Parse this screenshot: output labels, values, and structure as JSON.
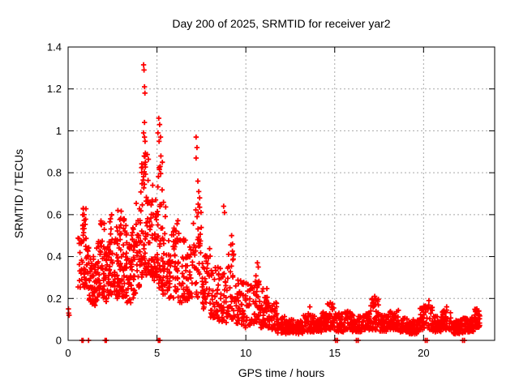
{
  "window": {
    "background": "#ffffff"
  },
  "chart_data": {
    "type": "scatter",
    "title": "Day 200 of 2025, SRMTID for receiver yar2",
    "xlabel": "GPS time / hours",
    "ylabel": "SRMTID / TECUs",
    "xlim": [
      0,
      24
    ],
    "ylim": [
      0,
      1.4
    ],
    "xticks": {
      "values": [
        0,
        5,
        10,
        15,
        20
      ],
      "labels": [
        "0",
        "5",
        "10",
        "15",
        "20"
      ]
    },
    "yticks": {
      "values": [
        0,
        0.2,
        0.4,
        0.6,
        0.8,
        1.0,
        1.2,
        1.4
      ],
      "labels": [
        "0",
        "0.2",
        "0.4",
        "0.6",
        "0.8",
        "1",
        "1.2",
        "1.4"
      ]
    },
    "grid": true,
    "legend_position": "none",
    "marker": "plus",
    "marker_color": "#ff0000",
    "grid_color": "#a8a8a8",
    "axis_color": "#000000",
    "seed": 20250720,
    "outlier_points": [
      [
        0.02,
        0.15
      ],
      [
        0.03,
        0.13
      ],
      [
        0.05,
        0.12
      ],
      [
        0.06,
        0.12
      ],
      [
        0.85,
        0.63
      ],
      [
        0.9,
        0.6
      ],
      [
        1.85,
        0.57
      ],
      [
        2.45,
        0.6
      ],
      [
        2.8,
        0.62
      ],
      [
        3.15,
        0.58
      ],
      [
        4.25,
        1.315
      ],
      [
        4.27,
        1.29
      ],
      [
        4.3,
        1.21
      ],
      [
        4.32,
        1.18
      ],
      [
        4.3,
        1.04
      ],
      [
        4.25,
        0.99
      ],
      [
        4.3,
        0.97
      ],
      [
        4.33,
        0.95
      ],
      [
        4.28,
        0.88
      ],
      [
        4.35,
        0.85
      ],
      [
        5.1,
        1.06
      ],
      [
        5.15,
        1.03
      ],
      [
        5.05,
        0.99
      ],
      [
        5.2,
        0.97
      ],
      [
        5.12,
        0.95
      ],
      [
        5.22,
        0.88
      ],
      [
        5.3,
        0.85
      ],
      [
        5.18,
        0.83
      ],
      [
        7.2,
        0.97
      ],
      [
        7.25,
        0.92
      ],
      [
        7.2,
        0.87
      ],
      [
        7.3,
        0.76
      ],
      [
        7.35,
        0.71
      ],
      [
        7.4,
        0.68
      ],
      [
        7.32,
        0.65
      ],
      [
        8.75,
        0.64
      ],
      [
        8.8,
        0.61
      ],
      [
        9.2,
        0.5
      ],
      [
        9.25,
        0.46
      ],
      [
        10.65,
        0.37
      ],
      [
        10.7,
        0.35
      ],
      [
        13.6,
        0.16
      ],
      [
        14.75,
        0.18
      ],
      [
        17.25,
        0.21
      ],
      [
        17.3,
        0.2
      ],
      [
        20.3,
        0.19
      ],
      [
        21.3,
        0.16
      ],
      [
        23.0,
        0.15
      ],
      [
        23.1,
        0.14
      ]
    ],
    "zero_points": [
      0.78,
      0.84,
      1.15,
      2.08,
      2.15,
      5.08,
      5.16,
      15.05,
      15.15,
      16.22,
      16.32,
      20.1,
      20.2,
      22.2,
      22.3
    ],
    "density_bands": {
      "format": "[x_start_hours, x_end_hours, y_min_TECUs, y_max_TECUs, point_count]",
      "bins": [
        [
          0.55,
          0.8,
          0.25,
          0.5,
          16
        ],
        [
          0.8,
          1.05,
          0.25,
          0.63,
          36
        ],
        [
          1.05,
          1.3,
          0.18,
          0.45,
          28
        ],
        [
          1.3,
          1.55,
          0.15,
          0.4,
          26
        ],
        [
          1.55,
          1.8,
          0.18,
          0.48,
          28
        ],
        [
          1.8,
          2.05,
          0.2,
          0.57,
          30
        ],
        [
          2.05,
          2.3,
          0.18,
          0.48,
          28
        ],
        [
          2.3,
          2.55,
          0.2,
          0.6,
          30
        ],
        [
          2.55,
          2.8,
          0.2,
          0.55,
          30
        ],
        [
          2.8,
          3.05,
          0.22,
          0.62,
          32
        ],
        [
          3.05,
          3.3,
          0.2,
          0.58,
          30
        ],
        [
          3.3,
          3.55,
          0.18,
          0.48,
          28
        ],
        [
          3.55,
          3.8,
          0.2,
          0.55,
          28
        ],
        [
          3.8,
          4.05,
          0.25,
          0.67,
          28
        ],
        [
          4.05,
          4.3,
          0.3,
          0.85,
          32
        ],
        [
          4.3,
          4.55,
          0.3,
          0.9,
          34
        ],
        [
          4.55,
          4.8,
          0.3,
          0.78,
          28
        ],
        [
          4.8,
          5.05,
          0.28,
          0.72,
          26
        ],
        [
          5.05,
          5.3,
          0.25,
          0.85,
          28
        ],
        [
          5.3,
          5.55,
          0.22,
          0.7,
          26
        ],
        [
          5.55,
          5.8,
          0.2,
          0.5,
          26
        ],
        [
          5.8,
          6.25,
          0.2,
          0.58,
          40
        ],
        [
          6.25,
          6.75,
          0.18,
          0.5,
          40
        ],
        [
          6.75,
          7.0,
          0.2,
          0.45,
          22
        ],
        [
          7.0,
          7.5,
          0.2,
          0.65,
          40
        ],
        [
          7.5,
          8.0,
          0.15,
          0.45,
          40
        ],
        [
          8.0,
          8.5,
          0.1,
          0.35,
          40
        ],
        [
          8.5,
          9.0,
          0.08,
          0.35,
          40
        ],
        [
          9.0,
          9.35,
          0.1,
          0.46,
          28
        ],
        [
          9.35,
          9.75,
          0.08,
          0.3,
          32
        ],
        [
          9.75,
          10.25,
          0.06,
          0.28,
          40
        ],
        [
          10.25,
          10.75,
          0.08,
          0.32,
          40
        ],
        [
          10.75,
          11.25,
          0.06,
          0.25,
          40
        ],
        [
          11.25,
          11.75,
          0.05,
          0.18,
          40
        ],
        [
          11.75,
          12.25,
          0.035,
          0.12,
          42
        ],
        [
          12.25,
          13.25,
          0.03,
          0.1,
          85
        ],
        [
          13.25,
          13.75,
          0.04,
          0.13,
          42
        ],
        [
          13.75,
          14.25,
          0.04,
          0.12,
          42
        ],
        [
          14.25,
          14.6,
          0.05,
          0.14,
          30
        ],
        [
          14.6,
          15.0,
          0.05,
          0.18,
          34
        ],
        [
          15.0,
          15.5,
          0.04,
          0.13,
          42
        ],
        [
          15.5,
          16.0,
          0.05,
          0.14,
          42
        ],
        [
          16.0,
          16.5,
          0.04,
          0.12,
          42
        ],
        [
          16.5,
          17.0,
          0.05,
          0.13,
          42
        ],
        [
          17.0,
          17.5,
          0.05,
          0.2,
          42
        ],
        [
          17.5,
          18.0,
          0.04,
          0.12,
          42
        ],
        [
          18.0,
          18.6,
          0.05,
          0.15,
          50
        ],
        [
          18.6,
          19.2,
          0.04,
          0.11,
          50
        ],
        [
          19.2,
          19.8,
          0.03,
          0.1,
          50
        ],
        [
          19.8,
          20.5,
          0.05,
          0.17,
          58
        ],
        [
          20.5,
          21.0,
          0.04,
          0.12,
          42
        ],
        [
          21.0,
          21.6,
          0.05,
          0.15,
          50
        ],
        [
          21.6,
          22.2,
          0.03,
          0.1,
          50
        ],
        [
          22.2,
          22.8,
          0.04,
          0.11,
          55
        ],
        [
          22.8,
          23.2,
          0.06,
          0.15,
          40
        ]
      ]
    }
  }
}
